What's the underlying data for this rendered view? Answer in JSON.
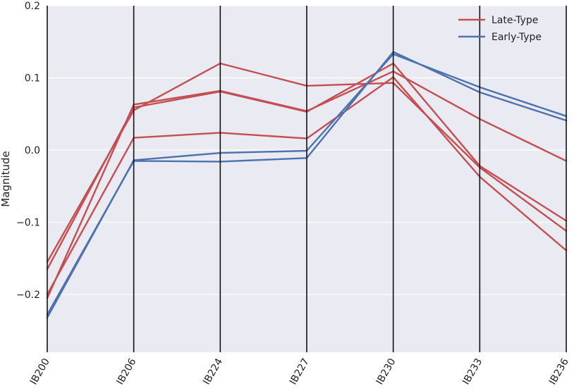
{
  "chart_data": {
    "type": "line",
    "subtype": "parallel-coordinates",
    "title": "",
    "xlabel": "",
    "ylabel": "Magnitude",
    "categories": [
      "IB200",
      "IB206",
      "IB224",
      "IB227",
      "IB230",
      "IB233",
      "IB236"
    ],
    "ylim": [
      -0.28,
      0.2
    ],
    "yticks": [
      0.2,
      0.1,
      0.0,
      -0.1,
      -0.2
    ],
    "ytick_labels": [
      "0.2",
      "0.1",
      "0.0",
      "−0.1",
      "−0.2"
    ],
    "grid": true,
    "background": "#eaeaf2",
    "legend": {
      "placement": "top-right",
      "entries": [
        "Late-Type",
        "Early-Type"
      ]
    },
    "colors": {
      "Late-Type": "#c44e52",
      "Early-Type": "#4c72b0"
    },
    "lines": [
      {
        "class": "Late-Type",
        "values": [
          -0.205,
          0.063,
          0.082,
          0.054,
          0.109,
          0.043,
          -0.015
        ]
      },
      {
        "class": "Late-Type",
        "values": [
          -0.155,
          0.055,
          0.12,
          0.089,
          0.093,
          -0.024,
          -0.112
        ]
      },
      {
        "class": "Late-Type",
        "values": [
          -0.165,
          0.059,
          0.081,
          0.053,
          0.12,
          -0.022,
          -0.098
        ]
      },
      {
        "class": "Late-Type",
        "values": [
          -0.2,
          0.017,
          0.024,
          0.016,
          0.101,
          -0.037,
          -0.139
        ]
      },
      {
        "class": "Early-Type",
        "values": [
          -0.232,
          -0.014,
          -0.004,
          -0.001,
          0.133,
          0.087,
          0.047
        ]
      },
      {
        "class": "Early-Type",
        "values": [
          -0.228,
          -0.015,
          -0.016,
          -0.011,
          0.136,
          0.08,
          0.041
        ]
      }
    ]
  }
}
